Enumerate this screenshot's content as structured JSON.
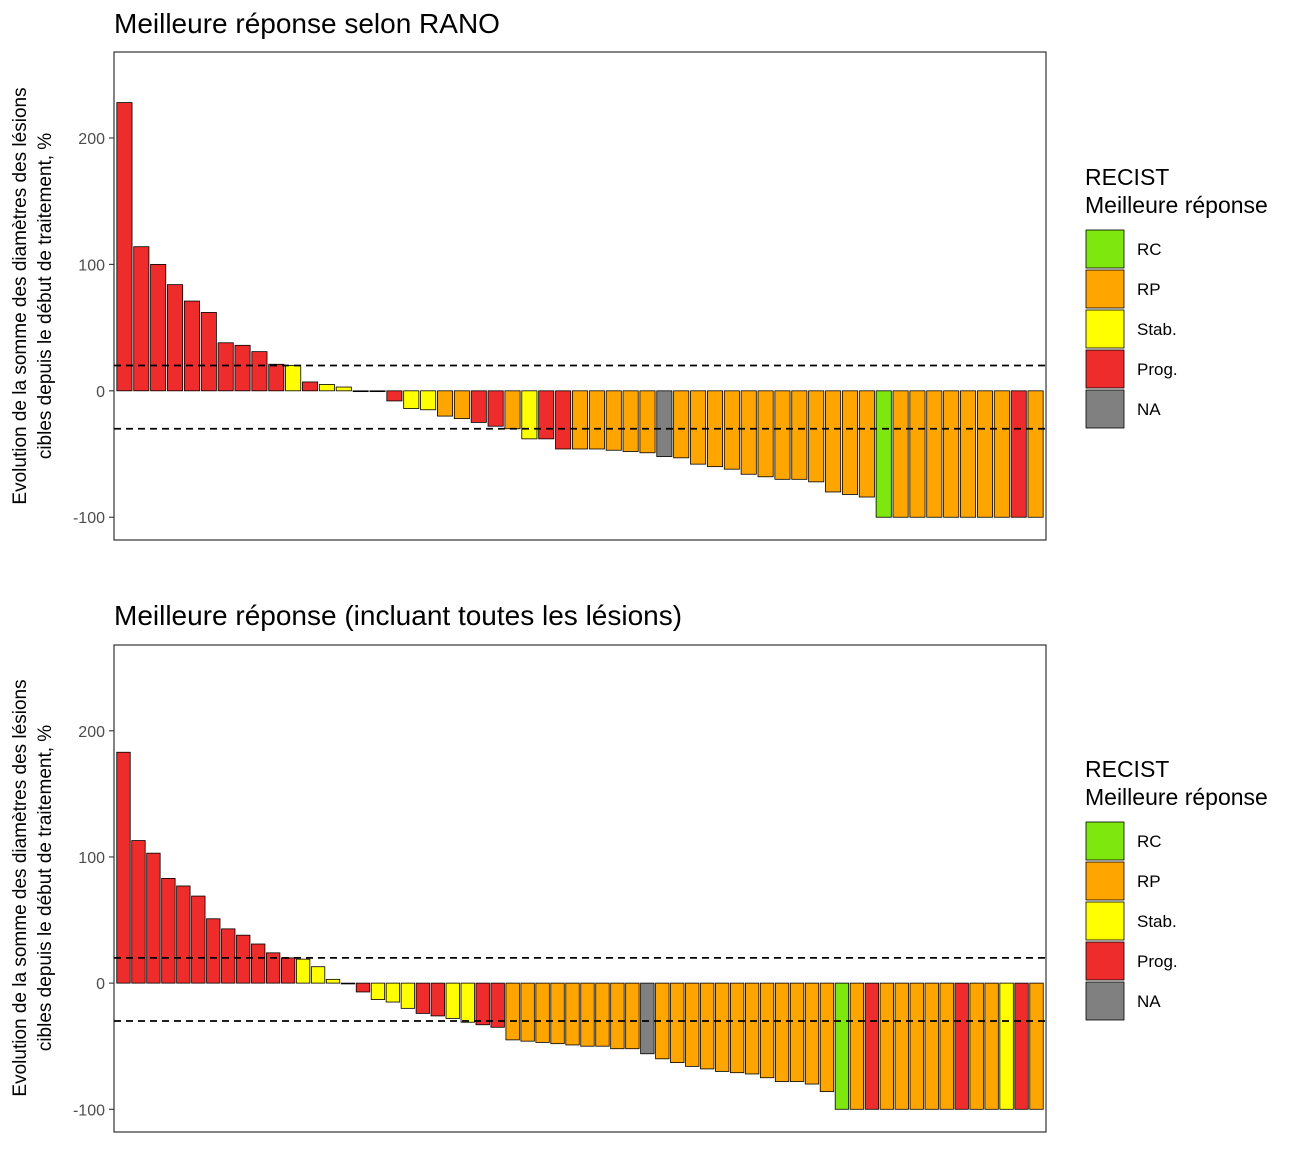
{
  "colors": {
    "RC": "#7ee70e",
    "RP": "#ffa500",
    "Stab.": "#ffff00",
    "Prog.": "#ee2c2c",
    "NA": "#808080"
  },
  "chart_data": [
    {
      "type": "bar",
      "title": "Meilleure réponse selon RANO",
      "ylabel_line1": "Evolution de la somme des diamètres des lésions",
      "ylabel_line2": "cibles depuis le début de traitement, %",
      "ylim": [
        -118,
        268
      ],
      "yticks": [
        -100,
        0,
        100,
        200
      ],
      "ytick_labels": [
        "-100",
        "0",
        "100",
        "200"
      ],
      "reference_lines": [
        20,
        -30
      ],
      "legend": {
        "title_line1": "RECIST",
        "title_line2": "Meilleure réponse",
        "position": "right",
        "items": [
          "RC",
          "RP",
          "Stab.",
          "Prog.",
          "NA"
        ]
      },
      "values": [
        228,
        114,
        100,
        84,
        71,
        62,
        38,
        36,
        31,
        21,
        20,
        7,
        5,
        3,
        0,
        0,
        -8,
        -14,
        -15,
        -20,
        -22,
        -25,
        -28,
        -30,
        -38,
        -38,
        -46,
        -46,
        -46,
        -47,
        -48,
        -49,
        -52,
        -53,
        -58,
        -60,
        -62,
        -66,
        -68,
        -70,
        -70,
        -72,
        -80,
        -82,
        -84,
        -100,
        -100,
        -100,
        -100,
        -100,
        -100,
        -100,
        -100,
        -100,
        -100
      ],
      "categories_response": [
        "Prog.",
        "Prog.",
        "Prog.",
        "Prog.",
        "Prog.",
        "Prog.",
        "Prog.",
        "Prog.",
        "Prog.",
        "Prog.",
        "Stab.",
        "Prog.",
        "Stab.",
        "Stab.",
        "Stab.",
        "Stab.",
        "Prog.",
        "Stab.",
        "Stab.",
        "RP",
        "RP",
        "Prog.",
        "Prog.",
        "RP",
        "Stab.",
        "Prog.",
        "Prog.",
        "RP",
        "RP",
        "RP",
        "RP",
        "RP",
        "NA",
        "RP",
        "RP",
        "RP",
        "RP",
        "RP",
        "RP",
        "RP",
        "RP",
        "RP",
        "RP",
        "RP",
        "RP",
        "RC",
        "RP",
        "RP",
        "RP",
        "RP",
        "RP",
        "RP",
        "RP",
        "Prog.",
        "RP"
      ]
    },
    {
      "type": "bar",
      "title": "Meilleure réponse  (incluant toutes les lésions)",
      "ylabel_line1": "Evolution de la somme des diamètres des lésions",
      "ylabel_line2": "cibles depuis le début de traitement, %",
      "ylim": [
        -118,
        268
      ],
      "yticks": [
        -100,
        0,
        100,
        200
      ],
      "ytick_labels": [
        "-100",
        "0",
        "100",
        "200"
      ],
      "reference_lines": [
        20,
        -30
      ],
      "legend": {
        "title_line1": "RECIST",
        "title_line2": "Meilleure réponse",
        "position": "right",
        "items": [
          "RC",
          "RP",
          "Stab.",
          "Prog.",
          "NA"
        ]
      },
      "values": [
        183,
        113,
        103,
        83,
        77,
        69,
        51,
        43,
        38,
        31,
        24,
        20,
        19,
        13,
        3,
        0,
        -7,
        -13,
        -15,
        -20,
        -24,
        -26,
        -28,
        -31,
        -33,
        -35,
        -45,
        -46,
        -47,
        -48,
        -49,
        -50,
        -50,
        -52,
        -52,
        -56,
        -60,
        -63,
        -66,
        -68,
        -70,
        -71,
        -72,
        -75,
        -78,
        -78,
        -80,
        -86,
        -100,
        -100,
        -100,
        -100,
        -100,
        -100,
        -100,
        -100,
        -100,
        -100,
        -100,
        -100,
        -100,
        -100
      ],
      "categories_response": [
        "Prog.",
        "Prog.",
        "Prog.",
        "Prog.",
        "Prog.",
        "Prog.",
        "Prog.",
        "Prog.",
        "Prog.",
        "Prog.",
        "Prog.",
        "Prog.",
        "Stab.",
        "Stab.",
        "Stab.",
        "Stab.",
        "Prog.",
        "Stab.",
        "Stab.",
        "Stab.",
        "Prog.",
        "Prog.",
        "Stab.",
        "Stab.",
        "Prog.",
        "Prog.",
        "RP",
        "RP",
        "RP",
        "RP",
        "RP",
        "RP",
        "RP",
        "RP",
        "RP",
        "NA",
        "RP",
        "RP",
        "RP",
        "RP",
        "RP",
        "RP",
        "RP",
        "RP",
        "RP",
        "RP",
        "RP",
        "RP",
        "RC",
        "RP",
        "Prog.",
        "RP",
        "RP",
        "RP",
        "RP",
        "RP",
        "Prog.",
        "RP",
        "RP",
        "Stab.",
        "Prog.",
        "RP"
      ]
    }
  ]
}
